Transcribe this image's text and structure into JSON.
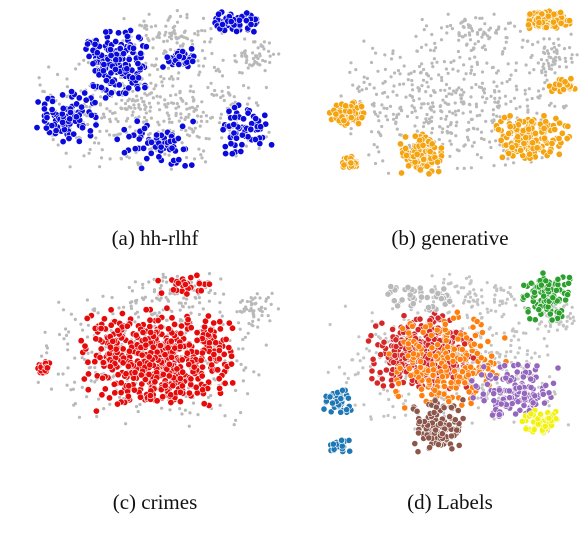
{
  "chart_data": [
    {
      "type": "scatter",
      "caption": "(a) hh-rlhf",
      "highlight_color": "#0a0adc",
      "background_color": "#b9b9b9",
      "clusters": [
        {
          "x": [
            -0.55,
            -0.05
          ],
          "y": [
            0.05,
            0.85
          ],
          "n": 180
        },
        {
          "x": [
            -0.95,
            -0.45
          ],
          "y": [
            -0.45,
            0.2
          ],
          "n": 90
        },
        {
          "x": [
            0.05,
            0.35
          ],
          "y": [
            0.35,
            0.6
          ],
          "n": 50
        },
        {
          "x": [
            0.4,
            0.85
          ],
          "y": [
            0.75,
            1.0
          ],
          "n": 70
        },
        {
          "x": [
            0.5,
            0.95
          ],
          "y": [
            -0.55,
            0.05
          ],
          "n": 60
        },
        {
          "x": [
            -0.35,
            0.35
          ],
          "y": [
            -0.7,
            -0.15
          ],
          "n": 60
        }
      ]
    },
    {
      "type": "scatter",
      "caption": "(b) generative",
      "highlight_color": "#f5a30f",
      "background_color": "#b9b9b9",
      "clusters": [
        {
          "x": [
            0.55,
            0.95
          ],
          "y": [
            0.8,
            1.0
          ],
          "n": 110
        },
        {
          "x": [
            -0.95,
            -0.65
          ],
          "y": [
            -0.25,
            0.05
          ],
          "n": 70
        },
        {
          "x": [
            -0.4,
            -0.05
          ],
          "y": [
            -0.75,
            -0.3
          ],
          "n": 120
        },
        {
          "x": [
            0.3,
            0.95
          ],
          "y": [
            -0.6,
            -0.1
          ],
          "n": 150
        },
        {
          "x": [
            -0.85,
            -0.7
          ],
          "y": [
            -0.7,
            -0.55
          ],
          "n": 40
        },
        {
          "x": [
            0.75,
            1.0
          ],
          "y": [
            0.1,
            0.3
          ],
          "n": 30
        }
      ]
    },
    {
      "type": "scatter",
      "caption": "(c) crimes",
      "highlight_color": "#e60a0a",
      "background_color": "#b9b9b9",
      "clusters": [
        {
          "x": [
            -0.65,
            0.7
          ],
          "y": [
            -0.6,
            0.6
          ],
          "n": 520
        },
        {
          "x": [
            -0.95,
            -0.8
          ],
          "y": [
            -0.2,
            0.0
          ],
          "n": 20
        },
        {
          "x": [
            0.0,
            0.45
          ],
          "y": [
            0.65,
            1.0
          ],
          "n": 30
        }
      ]
    },
    {
      "type": "scatter",
      "caption": "(d) Labels",
      "categories": [
        {
          "color": "#2ca02c",
          "clusters": [
            {
              "x": [
                0.55,
                0.95
              ],
              "y": [
                0.45,
                1.0
              ],
              "n": 110
            }
          ]
        },
        {
          "color": "#d62728",
          "clusters": [
            {
              "x": [
                -0.65,
                0.2
              ],
              "y": [
                -0.3,
                0.55
              ],
              "n": 330
            }
          ]
        },
        {
          "color": "#ff7f0e",
          "clusters": [
            {
              "x": [
                -0.55,
                0.45
              ],
              "y": [
                -0.55,
                0.6
              ],
              "n": 200
            }
          ]
        },
        {
          "color": "#9467bd",
          "clusters": [
            {
              "x": [
                0.15,
                0.85
              ],
              "y": [
                -0.6,
                0.05
              ],
              "n": 130
            }
          ]
        },
        {
          "color": "#8c564b",
          "clusters": [
            {
              "x": [
                -0.3,
                0.1
              ],
              "y": [
                -0.95,
                -0.35
              ],
              "n": 120
            }
          ]
        },
        {
          "color": "#1f77b4",
          "clusters": [
            {
              "x": [
                -1.0,
                -0.75
              ],
              "y": [
                -0.55,
                -0.25
              ],
              "n": 45
            },
            {
              "x": [
                -0.95,
                -0.75
              ],
              "y": [
                -0.95,
                -0.75
              ],
              "n": 25
            }
          ]
        },
        {
          "color": "#f2f20a",
          "clusters": [
            {
              "x": [
                0.55,
                0.85
              ],
              "y": [
                -0.75,
                -0.45
              ],
              "n": 45
            }
          ]
        },
        {
          "color": "#b9b9b9",
          "clusters": [
            {
              "x": [
                -0.6,
                0.1
              ],
              "y": [
                0.55,
                0.85
              ],
              "n": 40
            }
          ]
        }
      ]
    }
  ]
}
